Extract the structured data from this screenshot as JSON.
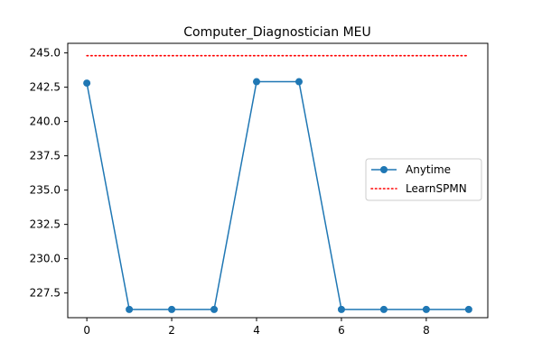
{
  "chart_data": {
    "type": "line",
    "title": "Computer_Diagnostician MEU",
    "xlabel": "",
    "ylabel": "",
    "x": [
      0,
      1,
      2,
      3,
      4,
      5,
      6,
      7,
      8,
      9
    ],
    "xlim": [
      -0.45,
      9.45
    ],
    "ylim": [
      225.7,
      245.7
    ],
    "xticks": [
      0,
      2,
      4,
      6,
      8
    ],
    "xtick_labels": [
      "0",
      "2",
      "4",
      "6",
      "8"
    ],
    "yticks": [
      227.5,
      230.0,
      232.5,
      235.0,
      237.5,
      240.0,
      242.5,
      245.0
    ],
    "ytick_labels": [
      "227.5",
      "230.0",
      "232.5",
      "235.0",
      "237.5",
      "240.0",
      "242.5",
      "245.0"
    ],
    "grid": false,
    "legend_position": "center-right",
    "series": [
      {
        "name": "Anytime",
        "style": "solid-with-circle-markers",
        "color": "#1f77b4",
        "values": [
          242.8,
          226.3,
          226.3,
          226.3,
          242.9,
          242.9,
          226.3,
          226.3,
          226.3,
          226.3
        ]
      },
      {
        "name": "LearnSPMN",
        "style": "dotted",
        "color": "#ff0000",
        "values": [
          244.8,
          244.8,
          244.8,
          244.8,
          244.8,
          244.8,
          244.8,
          244.8,
          244.8,
          244.8
        ]
      }
    ]
  }
}
